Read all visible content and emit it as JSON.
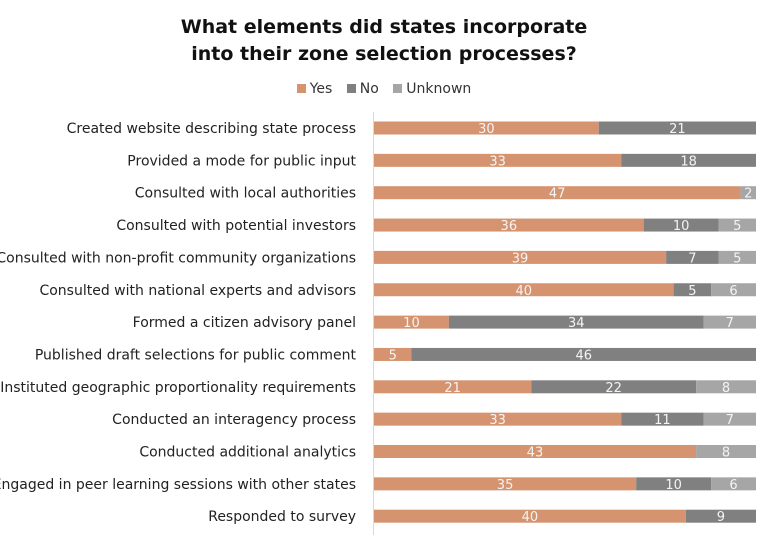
{
  "chart_data": {
    "type": "bar",
    "orientation": "horizontal",
    "stacked": "100%",
    "title": "What elements did states incorporate into their zone selection processes?",
    "title_lines": [
      "What elements did states incorporate",
      "into their zone selection processes?"
    ],
    "legend_position": "top",
    "grid": false,
    "categories": [
      "Created website describing state process",
      "Provided a mode for public input",
      "Consulted with local authorities",
      "Consulted with potential investors",
      "Consulted with non-profit community organizations",
      "Consulted with national experts and advisors",
      "Formed a citizen advisory panel",
      "Published draft selections for public comment",
      "Instituted geographic proportionality requirements",
      "Conducted an interagency process",
      "Conducted additional analytics",
      "Engaged in peer learning sessions with other states",
      "Responded to survey"
    ],
    "series": [
      {
        "name": "Yes",
        "color": "#D6936F",
        "values": [
          30,
          33,
          47,
          36,
          39,
          40,
          10,
          5,
          21,
          33,
          43,
          35,
          40
        ]
      },
      {
        "name": "No",
        "color": "#808080",
        "values": [
          21,
          18,
          null,
          10,
          7,
          5,
          34,
          46,
          22,
          11,
          null,
          10,
          9
        ]
      },
      {
        "name": "Unknown",
        "color": "#A6A6A6",
        "values": [
          null,
          null,
          2,
          5,
          5,
          6,
          7,
          null,
          8,
          7,
          8,
          6,
          null
        ]
      }
    ]
  }
}
